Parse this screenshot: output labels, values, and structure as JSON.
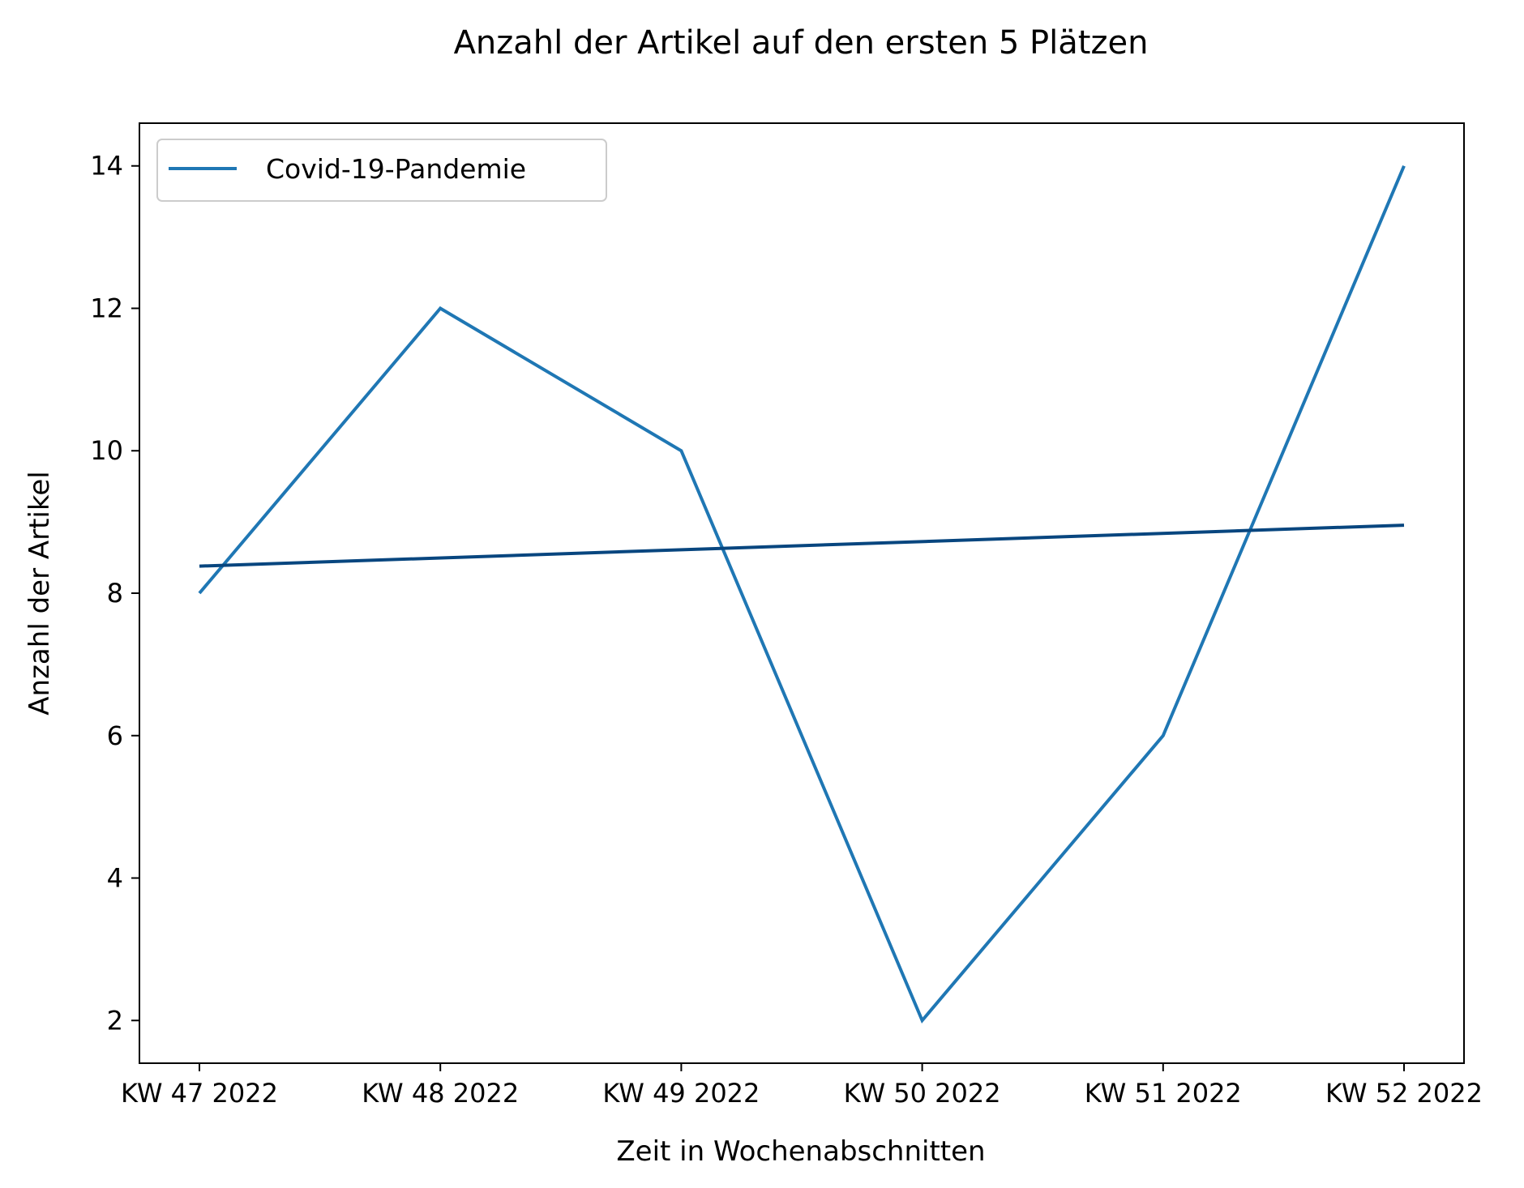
{
  "chart_data": {
    "type": "line",
    "title": "Anzahl der Artikel auf den ersten 5 Plätzen",
    "xlabel": "Zeit in Wochenabschnitten",
    "ylabel": "Anzahl der Artikel",
    "categories": [
      "KW 47 2022",
      "KW 48 2022",
      "KW 49 2022",
      "KW 50 2022",
      "KW 51 2022",
      "KW 52 2022"
    ],
    "series": [
      {
        "name": "Covid-19-Pandemie",
        "values": [
          8,
          12,
          10,
          2,
          6,
          14
        ],
        "color": "#1f77b4"
      }
    ],
    "trendline": {
      "values": [
        8.38,
        8.495,
        8.61,
        8.725,
        8.84,
        8.955
      ],
      "color": "#08467f"
    },
    "yticks": [
      2,
      4,
      6,
      8,
      10,
      12,
      14
    ],
    "ylim": [
      1.4,
      14.6
    ],
    "grid": false,
    "legend_position": "top-left"
  }
}
